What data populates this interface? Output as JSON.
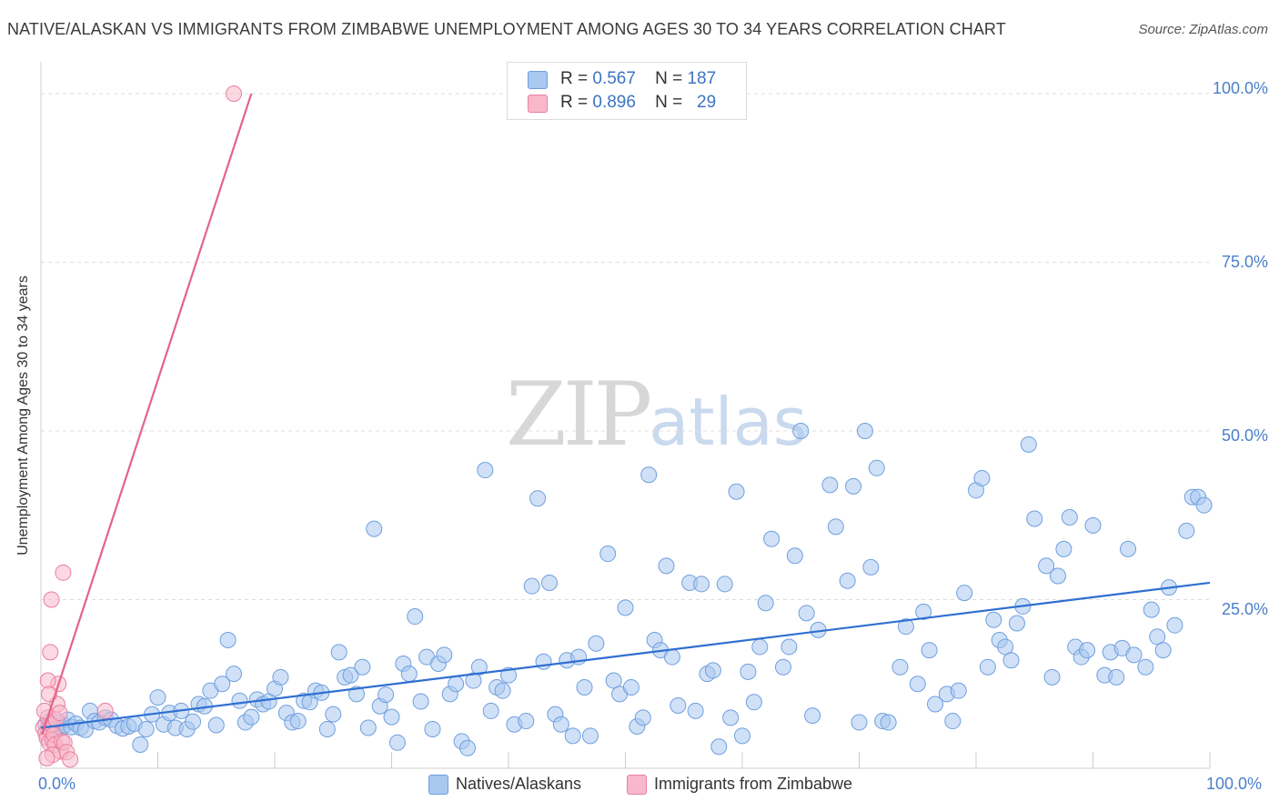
{
  "chart_data": {
    "type": "scatter",
    "title": "NATIVE/ALASKAN VS IMMIGRANTS FROM ZIMBABWE UNEMPLOYMENT AMONG AGES 30 TO 34 YEARS CORRELATION CHART",
    "source": "Source: ZipAtlas.com",
    "xlabel": "",
    "ylabel": "Unemployment Among Ages 30 to 34 years",
    "xlim": [
      0,
      100
    ],
    "ylim": [
      0,
      100
    ],
    "x_tick_labels": [
      "0.0%",
      "100.0%"
    ],
    "y_tick_labels": [
      "100.0%",
      "75.0%",
      "50.0%",
      "25.0%"
    ],
    "y_tick_values": [
      100,
      75,
      50,
      25
    ],
    "grid": true,
    "watermark": {
      "zip": "ZIP",
      "atlas": "atlas"
    },
    "legend": [
      {
        "name": "Natives/Alaskans",
        "r_label": "R =",
        "r": "0.567",
        "n_label": "N =",
        "n": "187",
        "color": "#a9c8f0",
        "stroke": "#6f9fde"
      },
      {
        "name": "Immigrants from Zimbabwe",
        "r_label": "R =",
        "r": "0.896",
        "n_label": "N =",
        "n": "29",
        "color": "#f8b8cb",
        "stroke": "#ea7fa0"
      }
    ],
    "series": [
      {
        "name": "Natives/Alaskans",
        "color": "#a9c8f0",
        "stroke": "#6f9fde",
        "trend": {
          "x": [
            0,
            100
          ],
          "y": [
            6.0,
            27.5
          ],
          "color": "#2f6fd1"
        },
        "points": [
          [
            0.4,
            6.5
          ],
          [
            0.6,
            5.8
          ],
          [
            0.8,
            7.0
          ],
          [
            1.0,
            6.2
          ],
          [
            1.2,
            5.5
          ],
          [
            1.5,
            6.8
          ],
          [
            1.8,
            6.0
          ],
          [
            2.0,
            6.4
          ],
          [
            2.3,
            7.2
          ],
          [
            2.6,
            6.1
          ],
          [
            3.0,
            6.6
          ],
          [
            3.4,
            6.0
          ],
          [
            3.8,
            5.7
          ],
          [
            4.2,
            8.5
          ],
          [
            4.6,
            7.0
          ],
          [
            5.0,
            6.8
          ],
          [
            5.5,
            7.5
          ],
          [
            6.0,
            7.2
          ],
          [
            6.5,
            6.3
          ],
          [
            7.0,
            5.9
          ],
          [
            7.5,
            6.2
          ],
          [
            8.0,
            6.6
          ],
          [
            8.5,
            3.5
          ],
          [
            9.0,
            5.8
          ],
          [
            9.5,
            8.0
          ],
          [
            10.0,
            10.5
          ],
          [
            10.5,
            6.5
          ],
          [
            11.0,
            8.2
          ],
          [
            11.5,
            6.0
          ],
          [
            12.0,
            8.5
          ],
          [
            12.5,
            5.8
          ],
          [
            13.0,
            6.9
          ],
          [
            13.5,
            9.5
          ],
          [
            14.0,
            9.2
          ],
          [
            14.5,
            11.5
          ],
          [
            15.0,
            6.4
          ],
          [
            15.5,
            12.5
          ],
          [
            16.0,
            19.0
          ],
          [
            16.5,
            14.0
          ],
          [
            17.0,
            10.0
          ],
          [
            17.5,
            6.8
          ],
          [
            18.0,
            7.6
          ],
          [
            18.5,
            10.2
          ],
          [
            19.0,
            9.5
          ],
          [
            19.5,
            9.9
          ],
          [
            20.0,
            11.8
          ],
          [
            20.5,
            13.5
          ],
          [
            21.0,
            8.2
          ],
          [
            21.5,
            6.8
          ],
          [
            22.0,
            7.0
          ],
          [
            22.5,
            10.0
          ],
          [
            23.0,
            9.8
          ],
          [
            23.5,
            11.5
          ],
          [
            24.0,
            11.2
          ],
          [
            24.5,
            5.8
          ],
          [
            25.0,
            8.0
          ],
          [
            25.5,
            17.2
          ],
          [
            26.0,
            13.5
          ],
          [
            26.5,
            13.8
          ],
          [
            27.0,
            11.0
          ],
          [
            27.5,
            15.0
          ],
          [
            28.0,
            6.0
          ],
          [
            28.5,
            35.5
          ],
          [
            29.0,
            9.2
          ],
          [
            29.5,
            10.9
          ],
          [
            30.0,
            7.6
          ],
          [
            30.5,
            3.8
          ],
          [
            31.0,
            15.5
          ],
          [
            31.5,
            14.0
          ],
          [
            32.0,
            22.5
          ],
          [
            32.5,
            9.9
          ],
          [
            33.0,
            16.5
          ],
          [
            33.5,
            5.8
          ],
          [
            34.0,
            15.5
          ],
          [
            34.5,
            16.8
          ],
          [
            35.0,
            11.0
          ],
          [
            35.5,
            12.5
          ],
          [
            36.0,
            4.0
          ],
          [
            36.5,
            3.0
          ],
          [
            37.0,
            13.0
          ],
          [
            37.5,
            15.0
          ],
          [
            38.0,
            44.2
          ],
          [
            38.5,
            8.5
          ],
          [
            39.0,
            12.0
          ],
          [
            39.5,
            11.5
          ],
          [
            40.0,
            13.8
          ],
          [
            40.5,
            6.5
          ],
          [
            41.5,
            7.0
          ],
          [
            42.0,
            27.0
          ],
          [
            42.5,
            40.0
          ],
          [
            43.0,
            15.8
          ],
          [
            43.5,
            27.5
          ],
          [
            44.0,
            8.0
          ],
          [
            44.5,
            6.5
          ],
          [
            45.0,
            16.0
          ],
          [
            45.5,
            4.8
          ],
          [
            46.0,
            16.5
          ],
          [
            46.5,
            12.0
          ],
          [
            47.0,
            4.8
          ],
          [
            47.5,
            18.5
          ],
          [
            48.5,
            31.8
          ],
          [
            49.0,
            13.0
          ],
          [
            49.5,
            11.0
          ],
          [
            50.0,
            23.8
          ],
          [
            50.5,
            12.0
          ],
          [
            51.0,
            6.2
          ],
          [
            51.5,
            7.5
          ],
          [
            52.0,
            43.5
          ],
          [
            52.5,
            19.0
          ],
          [
            53.0,
            17.5
          ],
          [
            53.5,
            30.0
          ],
          [
            54.0,
            16.5
          ],
          [
            54.5,
            9.3
          ],
          [
            55.5,
            27.5
          ],
          [
            56.0,
            8.5
          ],
          [
            56.5,
            27.3
          ],
          [
            57.0,
            14.0
          ],
          [
            57.5,
            14.5
          ],
          [
            58.0,
            3.2
          ],
          [
            58.5,
            27.3
          ],
          [
            59.0,
            7.5
          ],
          [
            59.5,
            41.0
          ],
          [
            60.0,
            4.8
          ],
          [
            60.5,
            14.3
          ],
          [
            61.0,
            9.8
          ],
          [
            61.5,
            18.0
          ],
          [
            62.0,
            24.5
          ],
          [
            62.5,
            34.0
          ],
          [
            63.5,
            15.0
          ],
          [
            64.0,
            18.0
          ],
          [
            64.5,
            31.5
          ],
          [
            65.0,
            50.0
          ],
          [
            65.5,
            23.0
          ],
          [
            66.0,
            7.8
          ],
          [
            66.5,
            20.5
          ],
          [
            67.5,
            42.0
          ],
          [
            68.0,
            35.8
          ],
          [
            69.0,
            27.8
          ],
          [
            69.5,
            41.8
          ],
          [
            70.0,
            6.8
          ],
          [
            70.5,
            50.0
          ],
          [
            71.0,
            29.8
          ],
          [
            71.5,
            44.5
          ],
          [
            72.0,
            7.0
          ],
          [
            72.5,
            6.8
          ],
          [
            73.5,
            15.0
          ],
          [
            74.0,
            21.0
          ],
          [
            75.0,
            12.5
          ],
          [
            75.5,
            23.2
          ],
          [
            76.0,
            17.5
          ],
          [
            76.5,
            9.5
          ],
          [
            77.5,
            11.0
          ],
          [
            78.0,
            7.0
          ],
          [
            78.5,
            11.5
          ],
          [
            79.0,
            26.0
          ],
          [
            80.0,
            41.2
          ],
          [
            80.5,
            43.0
          ],
          [
            81.0,
            15.0
          ],
          [
            81.5,
            22.0
          ],
          [
            82.0,
            19.0
          ],
          [
            82.5,
            18.0
          ],
          [
            83.0,
            16.0
          ],
          [
            83.5,
            21.5
          ],
          [
            84.0,
            24.0
          ],
          [
            84.5,
            48.0
          ],
          [
            85.0,
            37.0
          ],
          [
            86.0,
            30.0
          ],
          [
            86.5,
            13.5
          ],
          [
            87.0,
            28.5
          ],
          [
            87.5,
            32.5
          ],
          [
            88.0,
            37.2
          ],
          [
            88.5,
            18.0
          ],
          [
            89.0,
            16.5
          ],
          [
            89.5,
            17.5
          ],
          [
            90.0,
            36.0
          ],
          [
            91.0,
            13.8
          ],
          [
            91.5,
            17.2
          ],
          [
            92.0,
            13.5
          ],
          [
            92.5,
            17.8
          ],
          [
            93.0,
            32.5
          ],
          [
            93.5,
            16.8
          ],
          [
            94.5,
            15.0
          ],
          [
            95.0,
            23.5
          ],
          [
            95.5,
            19.5
          ],
          [
            96.0,
            17.5
          ],
          [
            96.5,
            26.8
          ],
          [
            97.0,
            21.2
          ],
          [
            98.0,
            35.2
          ],
          [
            98.5,
            40.2
          ],
          [
            99.0,
            40.2
          ],
          [
            99.5,
            39.0
          ]
        ]
      },
      {
        "name": "Immigrants from Zimbabwe",
        "color": "#f8b8cb",
        "stroke": "#ea7fa0",
        "trend": {
          "x": [
            0.1,
            18.0
          ],
          "y": [
            5.0,
            100.0
          ],
          "color": "#e4638c"
        },
        "points": [
          [
            0.2,
            6.0
          ],
          [
            0.4,
            5.2
          ],
          [
            0.5,
            4.5
          ],
          [
            0.6,
            7.5
          ],
          [
            0.7,
            3.8
          ],
          [
            0.8,
            5.8
          ],
          [
            0.9,
            6.5
          ],
          [
            1.0,
            4.2
          ],
          [
            1.1,
            5.0
          ],
          [
            1.2,
            3.5
          ],
          [
            1.3,
            7.2
          ],
          [
            1.4,
            9.5
          ],
          [
            1.5,
            12.5
          ],
          [
            1.6,
            8.2
          ],
          [
            1.7,
            2.5
          ],
          [
            1.8,
            4.0
          ],
          [
            1.9,
            29.0
          ],
          [
            0.9,
            25.0
          ],
          [
            0.8,
            17.2
          ],
          [
            0.6,
            13.0
          ],
          [
            0.7,
            11.0
          ],
          [
            2.0,
            3.8
          ],
          [
            2.2,
            2.4
          ],
          [
            2.5,
            1.3
          ],
          [
            1.0,
            2.0
          ],
          [
            0.5,
            1.5
          ],
          [
            5.5,
            8.5
          ],
          [
            0.3,
            8.5
          ],
          [
            16.5,
            100.0
          ]
        ]
      }
    ]
  }
}
